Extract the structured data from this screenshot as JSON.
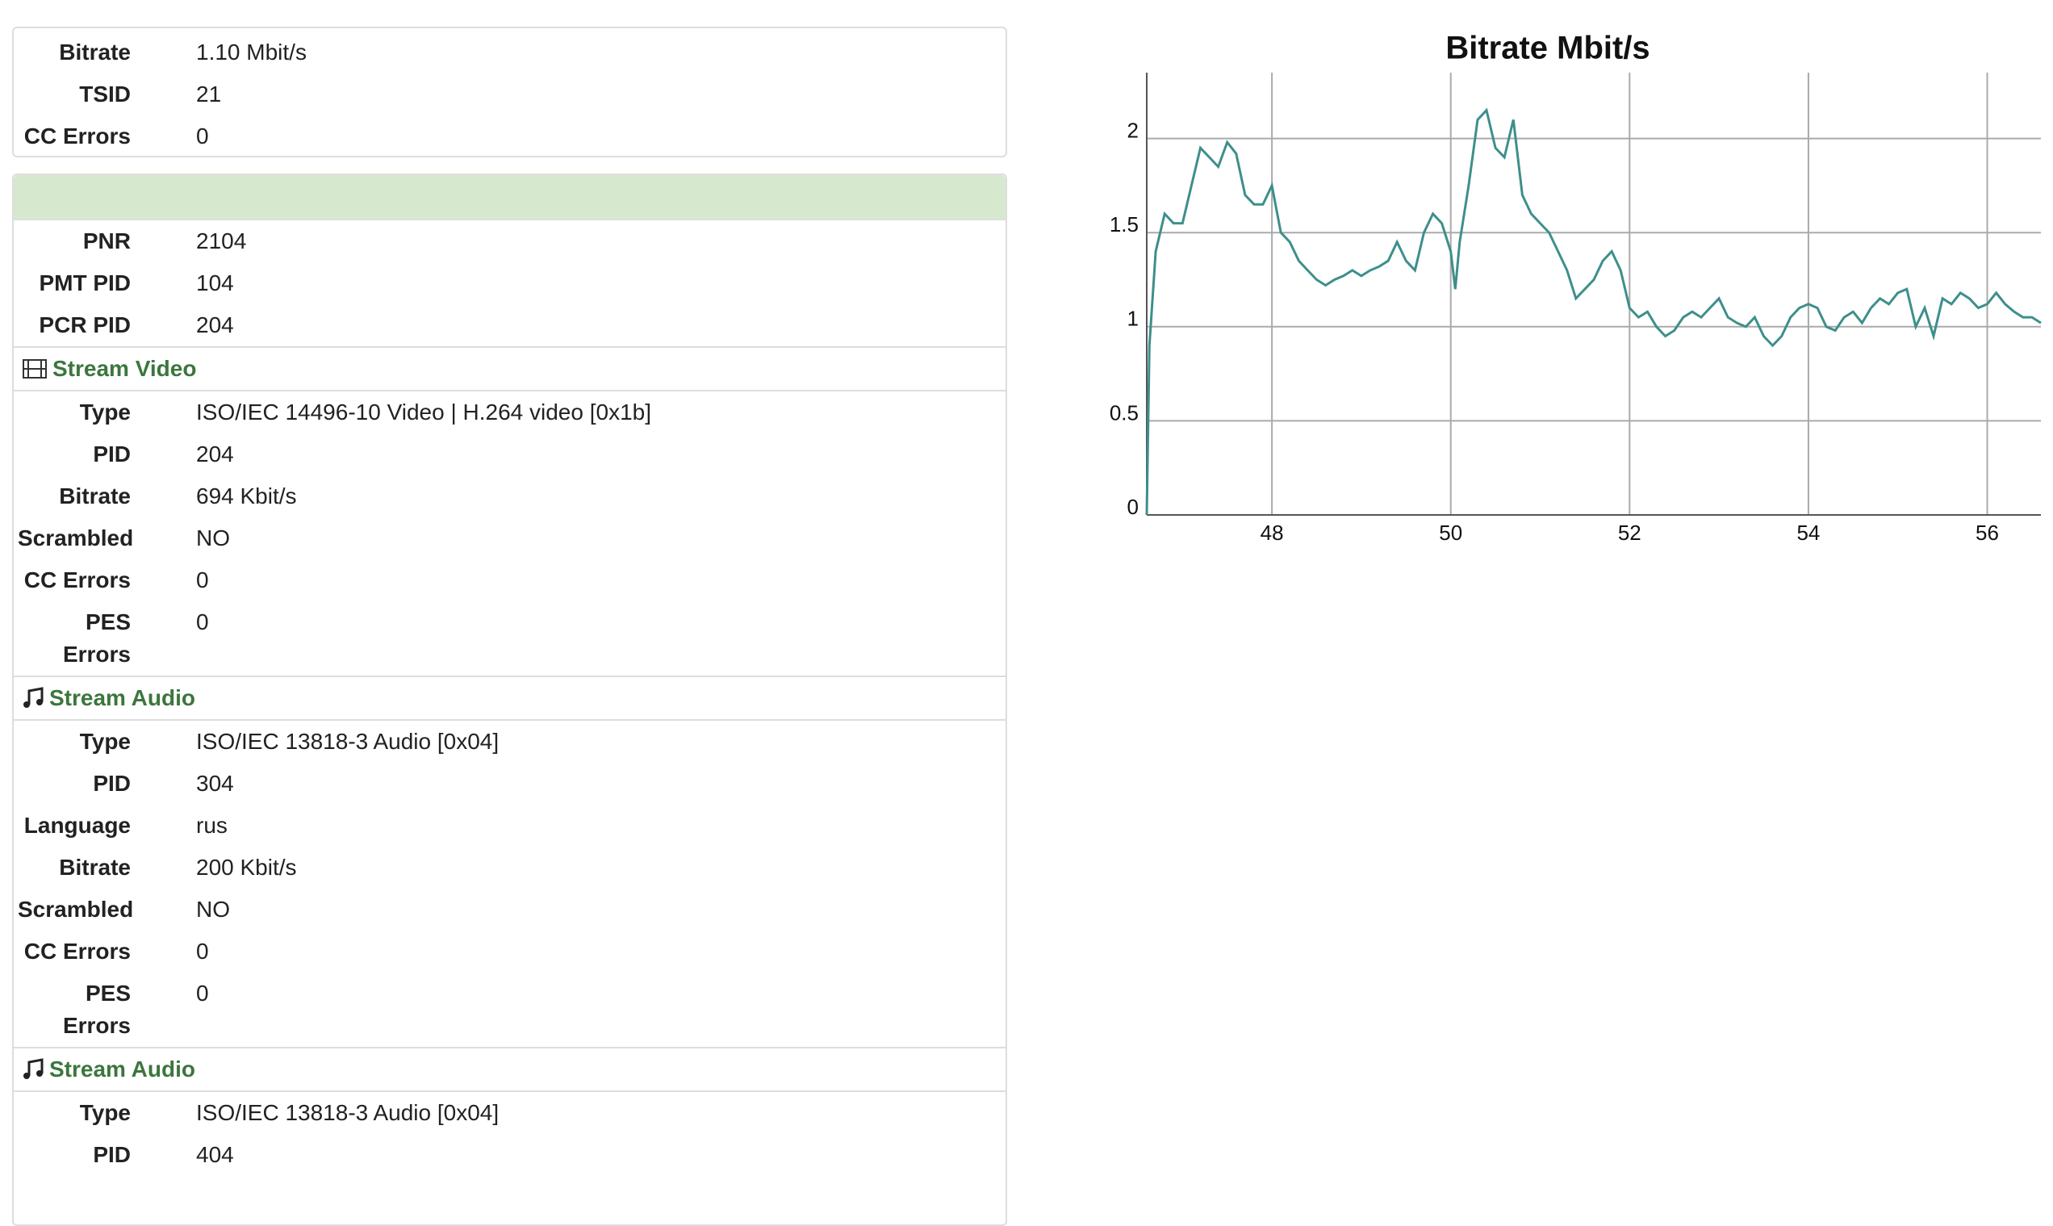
{
  "summary": [
    {
      "label": "Bitrate",
      "value": "1.10 Mbit/s"
    },
    {
      "label": "TSID",
      "value": "21"
    },
    {
      "label": "CC Errors",
      "value": "0"
    }
  ],
  "program": [
    {
      "label": "PNR",
      "value": "2104"
    },
    {
      "label": "PMT PID",
      "value": "104"
    },
    {
      "label": "PCR PID",
      "value": "204"
    }
  ],
  "streams": [
    {
      "title": "Stream Video",
      "rows": [
        {
          "label": "Type",
          "value": "ISO/IEC 14496-10 Video | H.264 video [0x1b]"
        },
        {
          "label": "PID",
          "value": "204"
        },
        {
          "label": "Bitrate",
          "value": "694 Kbit/s"
        },
        {
          "label": "Scrambled",
          "value": "NO"
        },
        {
          "label": "CC Errors",
          "value": "0"
        },
        {
          "label": "PES Errors",
          "value": "0"
        }
      ]
    },
    {
      "title": "Stream Audio",
      "rows": [
        {
          "label": "Type",
          "value": "ISO/IEC 13818-3 Audio [0x04]"
        },
        {
          "label": "PID",
          "value": "304"
        },
        {
          "label": "Language",
          "value": "rus"
        },
        {
          "label": "Bitrate",
          "value": "200 Kbit/s"
        },
        {
          "label": "Scrambled",
          "value": "NO"
        },
        {
          "label": "CC Errors",
          "value": "0"
        },
        {
          "label": "PES Errors",
          "value": "0"
        }
      ]
    },
    {
      "title": "Stream Audio",
      "rows": [
        {
          "label": "Type",
          "value": "ISO/IEC 13818-3 Audio [0x04]"
        },
        {
          "label": "PID",
          "value": "404"
        }
      ]
    }
  ],
  "chart_data": {
    "type": "line",
    "title": "Bitrate Mbit/s",
    "color": "#3d8f8b",
    "grid": true,
    "xlim": [
      46.6,
      56.6
    ],
    "xticks": [
      48,
      50,
      52,
      54,
      56
    ],
    "ylim": [
      0,
      2.35
    ],
    "yticks": [
      0,
      0.5,
      1,
      1.5,
      2
    ],
    "x": [
      46.6,
      46.63,
      46.7,
      46.8,
      46.9,
      47.0,
      47.1,
      47.2,
      47.3,
      47.4,
      47.5,
      47.6,
      47.7,
      47.8,
      47.9,
      48.0,
      48.1,
      48.2,
      48.3,
      48.4,
      48.5,
      48.6,
      48.7,
      48.8,
      48.9,
      49.0,
      49.1,
      49.2,
      49.3,
      49.4,
      49.5,
      49.6,
      49.7,
      49.8,
      49.9,
      50.0,
      50.05,
      50.1,
      50.2,
      50.3,
      50.4,
      50.5,
      50.6,
      50.7,
      50.8,
      50.9,
      51.0,
      51.1,
      51.2,
      51.3,
      51.4,
      51.5,
      51.6,
      51.7,
      51.8,
      51.9,
      52.0,
      52.1,
      52.2,
      52.3,
      52.4,
      52.5,
      52.6,
      52.7,
      52.8,
      52.9,
      53.0,
      53.1,
      53.2,
      53.3,
      53.4,
      53.5,
      53.6,
      53.7,
      53.8,
      53.9,
      54.0,
      54.1,
      54.2,
      54.3,
      54.4,
      54.5,
      54.6,
      54.7,
      54.8,
      54.9,
      55.0,
      55.1,
      55.2,
      55.3,
      55.4,
      55.5,
      55.6,
      55.7,
      55.8,
      55.9,
      56.0,
      56.1,
      56.2,
      56.3,
      56.4,
      56.5,
      56.6
    ],
    "values": [
      0,
      0.9,
      1.4,
      1.6,
      1.55,
      1.55,
      1.75,
      1.95,
      1.9,
      1.85,
      1.98,
      1.92,
      1.7,
      1.65,
      1.65,
      1.75,
      1.5,
      1.45,
      1.35,
      1.3,
      1.25,
      1.22,
      1.25,
      1.27,
      1.3,
      1.27,
      1.3,
      1.32,
      1.35,
      1.45,
      1.35,
      1.3,
      1.5,
      1.6,
      1.55,
      1.4,
      1.2,
      1.45,
      1.75,
      2.1,
      2.15,
      1.95,
      1.9,
      2.1,
      1.7,
      1.6,
      1.55,
      1.5,
      1.4,
      1.3,
      1.15,
      1.2,
      1.25,
      1.35,
      1.4,
      1.3,
      1.1,
      1.05,
      1.08,
      1.0,
      0.95,
      0.98,
      1.05,
      1.08,
      1.05,
      1.1,
      1.15,
      1.05,
      1.02,
      1.0,
      1.05,
      0.95,
      0.9,
      0.95,
      1.05,
      1.1,
      1.12,
      1.1,
      1.0,
      0.98,
      1.05,
      1.08,
      1.02,
      1.1,
      1.15,
      1.12,
      1.18,
      1.2,
      1.0,
      1.1,
      0.95,
      1.15,
      1.12,
      1.18,
      1.15,
      1.1,
      1.12,
      1.18,
      1.12,
      1.08,
      1.05,
      1.05,
      1.02
    ]
  }
}
